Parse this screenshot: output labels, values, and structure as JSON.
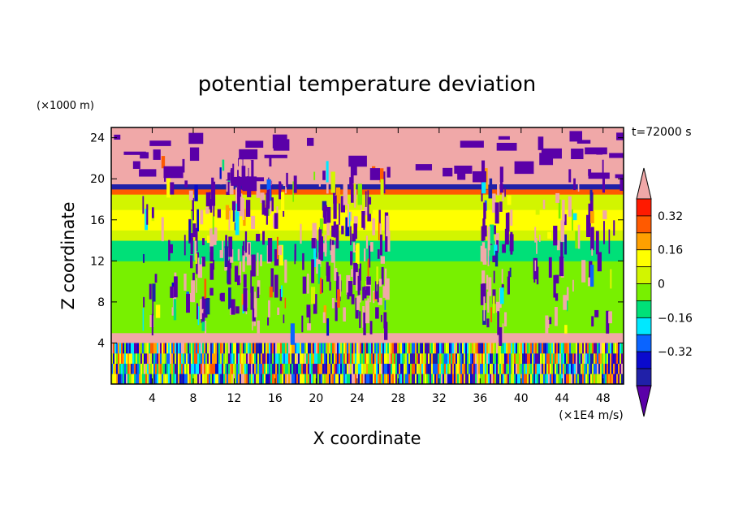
{
  "chart_data": {
    "type": "heatmap",
    "title": "potential temperature deviation",
    "xlabel": "X coordinate",
    "ylabel": "Z coordinate",
    "x_unit": "(×1E4 m/s)",
    "y_unit": "(×1000 m)",
    "time_label": "t=72000 s",
    "xlim": [
      0,
      50
    ],
    "ylim": [
      0,
      25
    ],
    "x_ticks": [
      "4",
      "8",
      "12",
      "16",
      "20",
      "24",
      "28",
      "32",
      "36",
      "40",
      "44",
      "48"
    ],
    "y_ticks": [
      "4",
      "8",
      "12",
      "16",
      "20",
      "24"
    ],
    "colorbar": {
      "labels": [
        "0.32",
        "0.16",
        "0",
        "-0.16",
        "-0.32"
      ],
      "levels": [
        -0.4,
        -0.32,
        -0.24,
        -0.16,
        -0.08,
        0,
        0.08,
        0.16,
        0.24,
        0.32,
        0.4
      ],
      "colors": [
        "#5a00a8",
        "#2020a8",
        "#0a0acd",
        "#0a64ff",
        "#00e8ff",
        "#00e078",
        "#78f000",
        "#d2f500",
        "#ffff00",
        "#ffa000",
        "#ff5a00",
        "#ff1a00",
        "#f0a8a8"
      ],
      "extend": "both"
    },
    "approx_layers": [
      {
        "z_range": [
          0,
          4
        ],
        "description_value": "mixed fine-scale -0.4 to 0.4"
      },
      {
        "z_range": [
          4,
          5
        ],
        "value": 0.4
      },
      {
        "z_range": [
          5,
          12
        ],
        "value": 0.04
      },
      {
        "z_range": [
          12,
          14
        ],
        "value": -0.08
      },
      {
        "z_range": [
          14,
          15
        ],
        "value": 0.1
      },
      {
        "z_range": [
          15,
          17
        ],
        "value": 0.2
      },
      {
        "z_range": [
          17,
          18.5
        ],
        "value": 0.12
      },
      {
        "z_range": [
          18.5,
          19
        ],
        "value": 0.36
      },
      {
        "z_range": [
          19,
          19.5
        ],
        "value": -0.4
      },
      {
        "z_range": [
          19.5,
          25
        ],
        "value": 0.4
      }
    ]
  }
}
